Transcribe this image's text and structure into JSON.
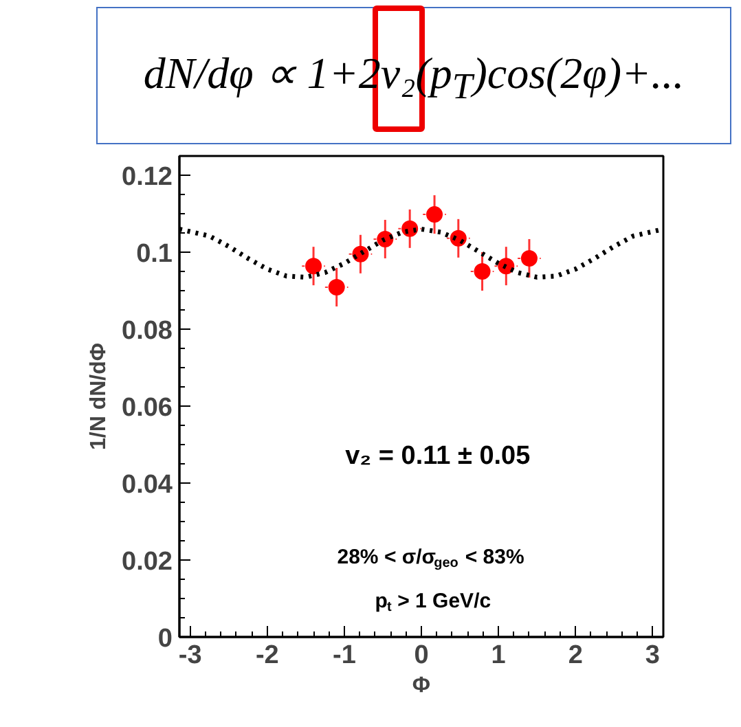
{
  "chart_data": {
    "type": "scatter",
    "title": "dN/dφ ∝ 1+2v₂(p$_{T}$)cos(2φ)+...",
    "xlabel": "Φ",
    "ylabel": "1/N dN/dΦ",
    "xlim": [
      -3.14,
      3.14
    ],
    "ylim": [
      0,
      0.125
    ],
    "xticks": [
      -3,
      -2,
      -1,
      0,
      1,
      2,
      3
    ],
    "yticks": [
      0,
      0.02,
      0.04,
      0.06,
      0.08,
      0.1,
      0.12
    ],
    "grid": false,
    "marker": "circle",
    "annotations": [
      "v₂ = 0.11 ± 0.05",
      "28% < σ/σ$_{geo}$ < 83%",
      "p$_{t}$ > 1 GeV/c"
    ],
    "series": [
      {
        "color": "#ff0000",
        "x": [
          -1.4,
          -1.1,
          -0.79,
          -0.47,
          -0.15,
          0.17,
          0.48,
          0.79,
          1.1,
          1.4
        ],
        "values": [
          0.0964,
          0.0909,
          0.0995,
          0.1034,
          0.1061,
          0.1098,
          0.1036,
          0.095,
          0.0964,
          0.0984
        ],
        "errors": [
          0.005,
          0.005,
          0.005,
          0.005,
          0.005,
          0.005,
          0.005,
          0.005,
          0.005,
          0.005
        ],
        "xerrors": [
          0.15,
          0.15,
          0.15,
          0.15,
          0.15,
          0.15,
          0.15,
          0.15,
          0.15,
          0.15
        ]
      },
      {
        "type": "line",
        "color": "#000000",
        "line_style": "dotted",
        "marker": "none",
        "x": [
          -3.14,
          -2.75,
          -2.5,
          -2.25,
          -2.0,
          -1.75,
          -1.5,
          -1.25,
          -1.0,
          -0.75,
          -0.5,
          -0.25,
          0,
          0.25,
          0.5,
          0.75,
          1.0,
          1.25,
          1.5,
          1.75,
          2.0,
          2.25,
          2.5,
          2.75,
          3.14
        ],
        "values": [
          0.106,
          0.1042,
          0.1015,
          0.0984,
          0.0956,
          0.0938,
          0.0935,
          0.0947,
          0.0971,
          0.1001,
          0.1031,
          0.1052,
          0.106,
          0.1052,
          0.1031,
          0.1001,
          0.0971,
          0.0947,
          0.0935,
          0.0938,
          0.0956,
          0.0984,
          0.1015,
          0.1042,
          0.106
        ]
      }
    ]
  }
}
